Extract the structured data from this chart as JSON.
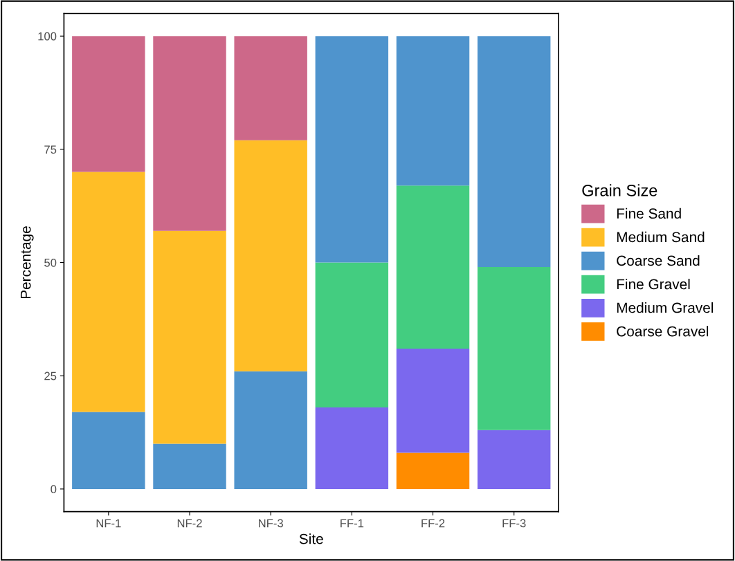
{
  "chart_data": {
    "type": "bar",
    "stacked": true,
    "xlabel": "Site",
    "ylabel": "Percentage",
    "legend_title": "Grain Size",
    "legend": "right",
    "grid": false,
    "categories": [
      "NF-1",
      "NF-2",
      "NF-3",
      "FF-1",
      "FF-2",
      "FF-3"
    ],
    "ylim": [
      -5,
      105
    ],
    "yticks": [
      0,
      25,
      50,
      75,
      100
    ],
    "series": [
      {
        "name": "Coarse Gravel",
        "color": "#ff8c00",
        "values": [
          null,
          null,
          null,
          null,
          8,
          null
        ]
      },
      {
        "name": "Medium Gravel",
        "color": "#7b68ee",
        "values": [
          null,
          null,
          null,
          18,
          23,
          13
        ]
      },
      {
        "name": "Fine Gravel",
        "color": "#43cd80",
        "values": [
          null,
          null,
          null,
          32,
          36,
          36
        ]
      },
      {
        "name": "Coarse Sand",
        "color": "#4f94cd",
        "values": [
          17,
          10,
          26,
          50,
          33,
          51
        ]
      },
      {
        "name": "Medium Sand",
        "color": "#ffbe26",
        "values": [
          53,
          47,
          51,
          null,
          null,
          null
        ]
      },
      {
        "name": "Fine Sand",
        "color": "#cd6889",
        "values": [
          30,
          43,
          23,
          null,
          null,
          null
        ]
      }
    ]
  }
}
